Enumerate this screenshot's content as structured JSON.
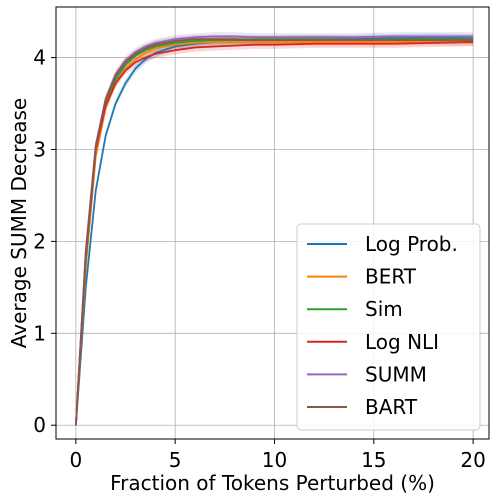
{
  "chart_data": {
    "type": "line",
    "title": "",
    "xlabel": "Fraction of Tokens Perturbed (%)",
    "ylabel": "Average SUMM Decrease",
    "xlim": [
      -1,
      20.8
    ],
    "ylim": [
      -0.15,
      4.55
    ],
    "xticks": [
      0,
      5,
      10,
      15,
      20
    ],
    "yticks": [
      0,
      1,
      2,
      3,
      4
    ],
    "grid": true,
    "legend_position": "bottom-right",
    "series": [
      {
        "name": "Log Prob.",
        "color": "#1f77b4",
        "x": [
          0,
          0.5,
          1,
          1.5,
          2,
          2.5,
          3,
          3.5,
          4,
          5,
          6,
          7,
          8,
          9,
          10,
          12,
          14,
          16,
          18,
          20
        ],
        "y": [
          0,
          1.5,
          2.55,
          3.15,
          3.5,
          3.72,
          3.88,
          3.98,
          4.05,
          4.12,
          4.15,
          4.17,
          4.18,
          4.19,
          4.19,
          4.2,
          4.2,
          4.21,
          4.22,
          4.21
        ]
      },
      {
        "name": "BERT",
        "color": "#ff7f0e",
        "x": [
          0,
          0.5,
          1,
          1.5,
          2,
          2.5,
          3,
          3.5,
          4,
          5,
          6,
          7,
          8,
          9,
          10,
          12,
          14,
          16,
          18,
          20
        ],
        "y": [
          0,
          1.72,
          2.92,
          3.45,
          3.72,
          3.88,
          3.98,
          4.05,
          4.1,
          4.14,
          4.16,
          4.17,
          4.17,
          4.17,
          4.17,
          4.17,
          4.17,
          4.17,
          4.18,
          4.17
        ]
      },
      {
        "name": "Sim",
        "color": "#2ca02c",
        "x": [
          0,
          0.5,
          1,
          1.5,
          2,
          2.5,
          3,
          3.5,
          4,
          5,
          6,
          7,
          8,
          9,
          10,
          12,
          14,
          16,
          18,
          20
        ],
        "y": [
          0,
          1.8,
          3.0,
          3.5,
          3.76,
          3.92,
          4.02,
          4.08,
          4.12,
          4.16,
          4.18,
          4.19,
          4.19,
          4.2,
          4.2,
          4.2,
          4.19,
          4.2,
          4.2,
          4.2
        ]
      },
      {
        "name": "Log NLI",
        "color": "#d62728",
        "x": [
          0,
          0.5,
          1,
          1.5,
          2,
          2.5,
          3,
          3.5,
          4,
          5,
          6,
          7,
          8,
          9,
          10,
          12,
          14,
          16,
          18,
          20
        ],
        "y": [
          0,
          1.85,
          3.0,
          3.48,
          3.72,
          3.86,
          3.95,
          4.0,
          4.04,
          4.08,
          4.11,
          4.12,
          4.13,
          4.14,
          4.14,
          4.15,
          4.15,
          4.15,
          4.16,
          4.17
        ]
      },
      {
        "name": "SUMM",
        "color": "#9467bd",
        "x": [
          0,
          0.5,
          1,
          1.5,
          2,
          2.5,
          3,
          3.5,
          4,
          5,
          6,
          7,
          8,
          9,
          10,
          12,
          14,
          16,
          18,
          20
        ],
        "y": [
          0,
          1.9,
          3.05,
          3.55,
          3.82,
          3.97,
          4.06,
          4.12,
          4.16,
          4.2,
          4.22,
          4.23,
          4.23,
          4.22,
          4.22,
          4.22,
          4.22,
          4.23,
          4.23,
          4.23
        ]
      },
      {
        "name": "BART",
        "color": "#8c564b",
        "x": [
          0,
          0.5,
          1,
          1.5,
          2,
          2.5,
          3,
          3.5,
          4,
          5,
          6,
          7,
          8,
          9,
          10,
          12,
          14,
          16,
          18,
          20
        ],
        "y": [
          0,
          1.88,
          3.02,
          3.55,
          3.8,
          3.95,
          4.04,
          4.1,
          4.14,
          4.18,
          4.2,
          4.2,
          4.2,
          4.19,
          4.19,
          4.19,
          4.19,
          4.19,
          4.19,
          4.19
        ]
      }
    ]
  }
}
